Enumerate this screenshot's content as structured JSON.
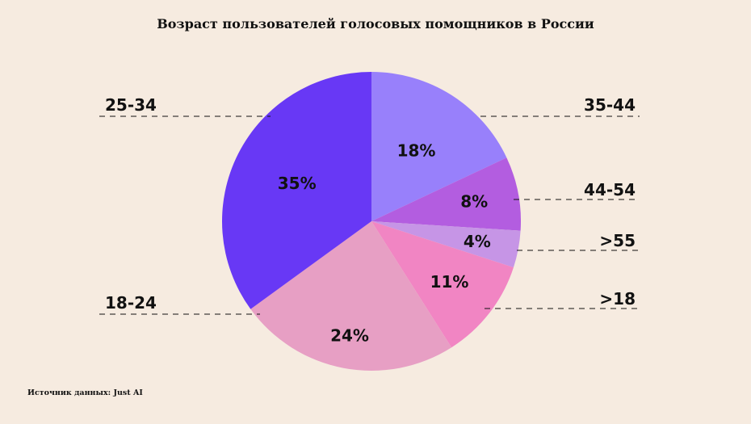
{
  "chart_data": {
    "type": "pie",
    "title": "Возраст пользователей голосовых помощников в России",
    "source": "Источник данных: Just AI",
    "slices": [
      {
        "category": "35-44",
        "value": 18,
        "label": "18%",
        "color": "#9880fb"
      },
      {
        "category": "44-54",
        "value": 8,
        "label": "8%",
        "color": "#b35de0"
      },
      {
        "category": ">55",
        "value": 4,
        "label": "4%",
        "color": "#c695e6"
      },
      {
        "category": ">18",
        "value": 11,
        "label": "11%",
        "color": "#f185c3"
      },
      {
        "category": "18-24",
        "value": 24,
        "label": "24%",
        "color": "#e79fc4"
      },
      {
        "category": "25-34",
        "value": 35,
        "label": "35%",
        "color": "#6838f5"
      }
    ],
    "legend": "none"
  }
}
